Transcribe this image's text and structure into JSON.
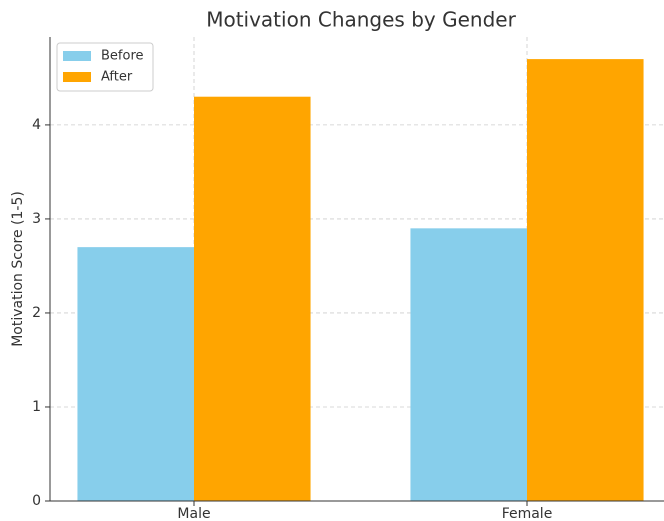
{
  "chart_data": {
    "type": "bar",
    "title": "Motivation Changes by Gender",
    "ylabel": "Motivation Score (1-5)",
    "categories": [
      "Male",
      "Female"
    ],
    "series": [
      {
        "name": "Before",
        "color": "#87ceeb",
        "values": [
          2.7,
          2.9
        ]
      },
      {
        "name": "After",
        "color": "#ffa500",
        "values": [
          4.3,
          4.7
        ]
      }
    ],
    "ylim": [
      0,
      4.935
    ],
    "yticks": [
      0,
      1,
      2,
      3,
      4
    ],
    "grid": true,
    "legend": "upper left"
  }
}
